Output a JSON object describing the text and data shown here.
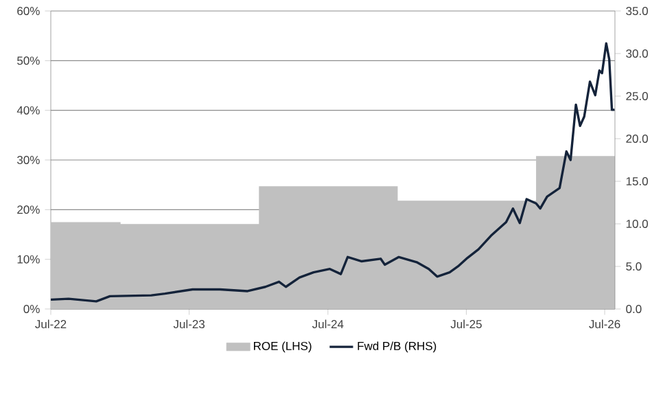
{
  "chart_data": {
    "type": "area",
    "series": [
      {
        "name": "ROE (LHS)",
        "color": "#c0c0c0",
        "axis": "y",
        "x": [
          "2022-07-01",
          "2023-01-01",
          "2023-01-01",
          "2024-01-01",
          "2024-01-01",
          "2025-01-01",
          "2025-01-01",
          "2026-01-01",
          "2026-01-01",
          "2026-07-28"
        ],
        "values": [
          17.5,
          17.5,
          17.1,
          17.1,
          24.7,
          24.7,
          21.8,
          21.8,
          30.8,
          30.8
        ]
      },
      {
        "name": "Fwd P/B (RHS)",
        "type": "line",
        "color": "#14233a",
        "axis": "y2",
        "x": [
          "2022-07-01",
          "2022-08-17",
          "2022-10-29",
          "2022-12-04",
          "2023-03-23",
          "2023-04-28",
          "2023-07-10",
          "2023-09-20",
          "2023-12-02",
          "2024-01-18",
          "2024-02-23",
          "2024-03-12",
          "2024-04-17",
          "2024-05-24",
          "2024-07-06",
          "2024-08-04",
          "2024-08-22",
          "2024-09-28",
          "2024-11-17",
          "2024-11-28",
          "2025-01-04",
          "2025-02-20",
          "2025-03-24",
          "2025-04-15",
          "2025-05-18",
          "2025-06-09",
          "2025-07-04",
          "2025-08-02",
          "2025-09-04",
          "2025-10-14",
          "2025-11-01",
          "2025-11-19",
          "2025-12-07",
          "2026-01-01",
          "2026-01-12",
          "2026-01-30",
          "2026-03-04",
          "2026-03-22",
          "2026-04-02",
          "2026-04-16",
          "2026-04-27",
          "2026-05-08",
          "2026-05-23",
          "2026-06-06",
          "2026-06-17",
          "2026-06-24",
          "2026-07-05",
          "2026-07-13",
          "2026-07-20",
          "2026-07-27"
        ],
        "values": [
          1.1,
          1.2,
          0.9,
          1.5,
          1.6,
          1.8,
          2.3,
          2.3,
          2.1,
          2.6,
          3.2,
          2.6,
          3.7,
          4.3,
          4.7,
          4.1,
          6.1,
          5.6,
          5.9,
          5.2,
          6.1,
          5.5,
          4.7,
          3.8,
          4.3,
          5.0,
          6.0,
          7.0,
          8.6,
          10.2,
          11.8,
          10.1,
          12.9,
          12.4,
          11.8,
          13.2,
          14.2,
          18.5,
          17.5,
          24.0,
          21.5,
          22.6,
          26.7,
          25.1,
          28.0,
          27.7,
          31.2,
          29.3,
          23.4,
          23.4
        ]
      }
    ],
    "xlim": [
      "2022-07-01",
      "2026-07-28"
    ],
    "xticks": [
      {
        "value": "2022-07-01",
        "label": "Jul-22"
      },
      {
        "value": "2023-07-01",
        "label": "Jul-23"
      },
      {
        "value": "2024-07-01",
        "label": "Jul-24"
      },
      {
        "value": "2025-07-01",
        "label": "Jul-25"
      },
      {
        "value": "2026-07-01",
        "label": "Jul-26"
      }
    ],
    "ylim": [
      0,
      60
    ],
    "yticks": [
      {
        "value": 0,
        "label": "0%"
      },
      {
        "value": 10,
        "label": "10%"
      },
      {
        "value": 20,
        "label": "20%"
      },
      {
        "value": 30,
        "label": "30%"
      },
      {
        "value": 40,
        "label": "40%"
      },
      {
        "value": 50,
        "label": "50%"
      },
      {
        "value": 60,
        "label": "60%"
      }
    ],
    "y2lim": [
      0,
      35
    ],
    "y2ticks": [
      {
        "value": 0,
        "label": "0.0"
      },
      {
        "value": 5,
        "label": "5.0"
      },
      {
        "value": 10,
        "label": "10.0"
      },
      {
        "value": 15,
        "label": "15.0"
      },
      {
        "value": 20,
        "label": "20.0"
      },
      {
        "value": 25,
        "label": "25.0"
      },
      {
        "value": 30,
        "label": "30.0"
      },
      {
        "value": 35,
        "label": "35.0"
      }
    ],
    "grid": "y",
    "legend": "bottom",
    "line_style": "solid",
    "marker": "none"
  }
}
